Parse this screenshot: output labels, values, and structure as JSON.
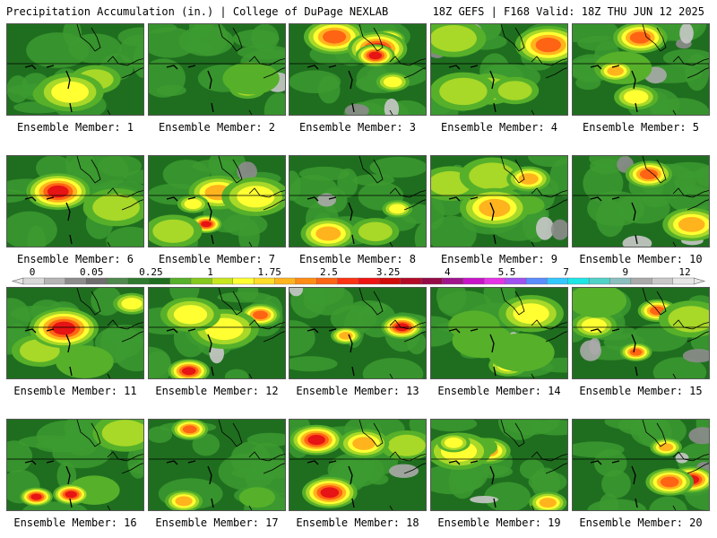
{
  "header": {
    "left_title": "Precipitation Accumulation (in.) | College of DuPage NEXLAB",
    "right_title": "18Z GEFS | F168 Valid: 18Z THU JUN 12 2025"
  },
  "caption_prefix": "Ensemble Member: ",
  "members": [
    {
      "id": 1,
      "label": "Ensemble Member: 1"
    },
    {
      "id": 2,
      "label": "Ensemble Member: 2"
    },
    {
      "id": 3,
      "label": "Ensemble Member: 3"
    },
    {
      "id": 4,
      "label": "Ensemble Member: 4"
    },
    {
      "id": 5,
      "label": "Ensemble Member: 5"
    },
    {
      "id": 6,
      "label": "Ensemble Member: 6"
    },
    {
      "id": 7,
      "label": "Ensemble Member: 7"
    },
    {
      "id": 8,
      "label": "Ensemble Member: 8"
    },
    {
      "id": 9,
      "label": "Ensemble Member: 9"
    },
    {
      "id": 10,
      "label": "Ensemble Member: 10"
    },
    {
      "id": 11,
      "label": "Ensemble Member: 11"
    },
    {
      "id": 12,
      "label": "Ensemble Member: 12"
    },
    {
      "id": 13,
      "label": "Ensemble Member: 13"
    },
    {
      "id": 14,
      "label": "Ensemble Member: 14"
    },
    {
      "id": 15,
      "label": "Ensemble Member: 15"
    },
    {
      "id": 16,
      "label": "Ensemble Member: 16"
    },
    {
      "id": 17,
      "label": "Ensemble Member: 17"
    },
    {
      "id": 18,
      "label": "Ensemble Member: 18"
    },
    {
      "id": 19,
      "label": "Ensemble Member: 19"
    },
    {
      "id": 20,
      "label": "Ensemble Member: 20"
    }
  ],
  "colorbar": {
    "tick_labels": [
      "0",
      "0.05",
      "0.25",
      "1",
      "1.75",
      "2.5",
      "3.25",
      "4",
      "5.5",
      "7",
      "9",
      "12"
    ],
    "colors": [
      "#d8d8d8",
      "#b4b4b4",
      "#8c8c8c",
      "#6e6e6e",
      "#4e8a4e",
      "#2f7a2f",
      "#1f6e1f",
      "#56b02a",
      "#86c81e",
      "#c8e61e",
      "#ffff32",
      "#ffdc28",
      "#ffb41e",
      "#ff8c14",
      "#ff6414",
      "#ff3214",
      "#f01414",
      "#d20a0a",
      "#b40a28",
      "#960a46",
      "#a0148c",
      "#c814c8",
      "#e632e6",
      "#a050f0",
      "#5a8cff",
      "#32c8ff",
      "#1ee6e6",
      "#50d2c8",
      "#8cbebe",
      "#aaaaaa",
      "#c8c8c8",
      "#e6e6e6"
    ]
  }
}
